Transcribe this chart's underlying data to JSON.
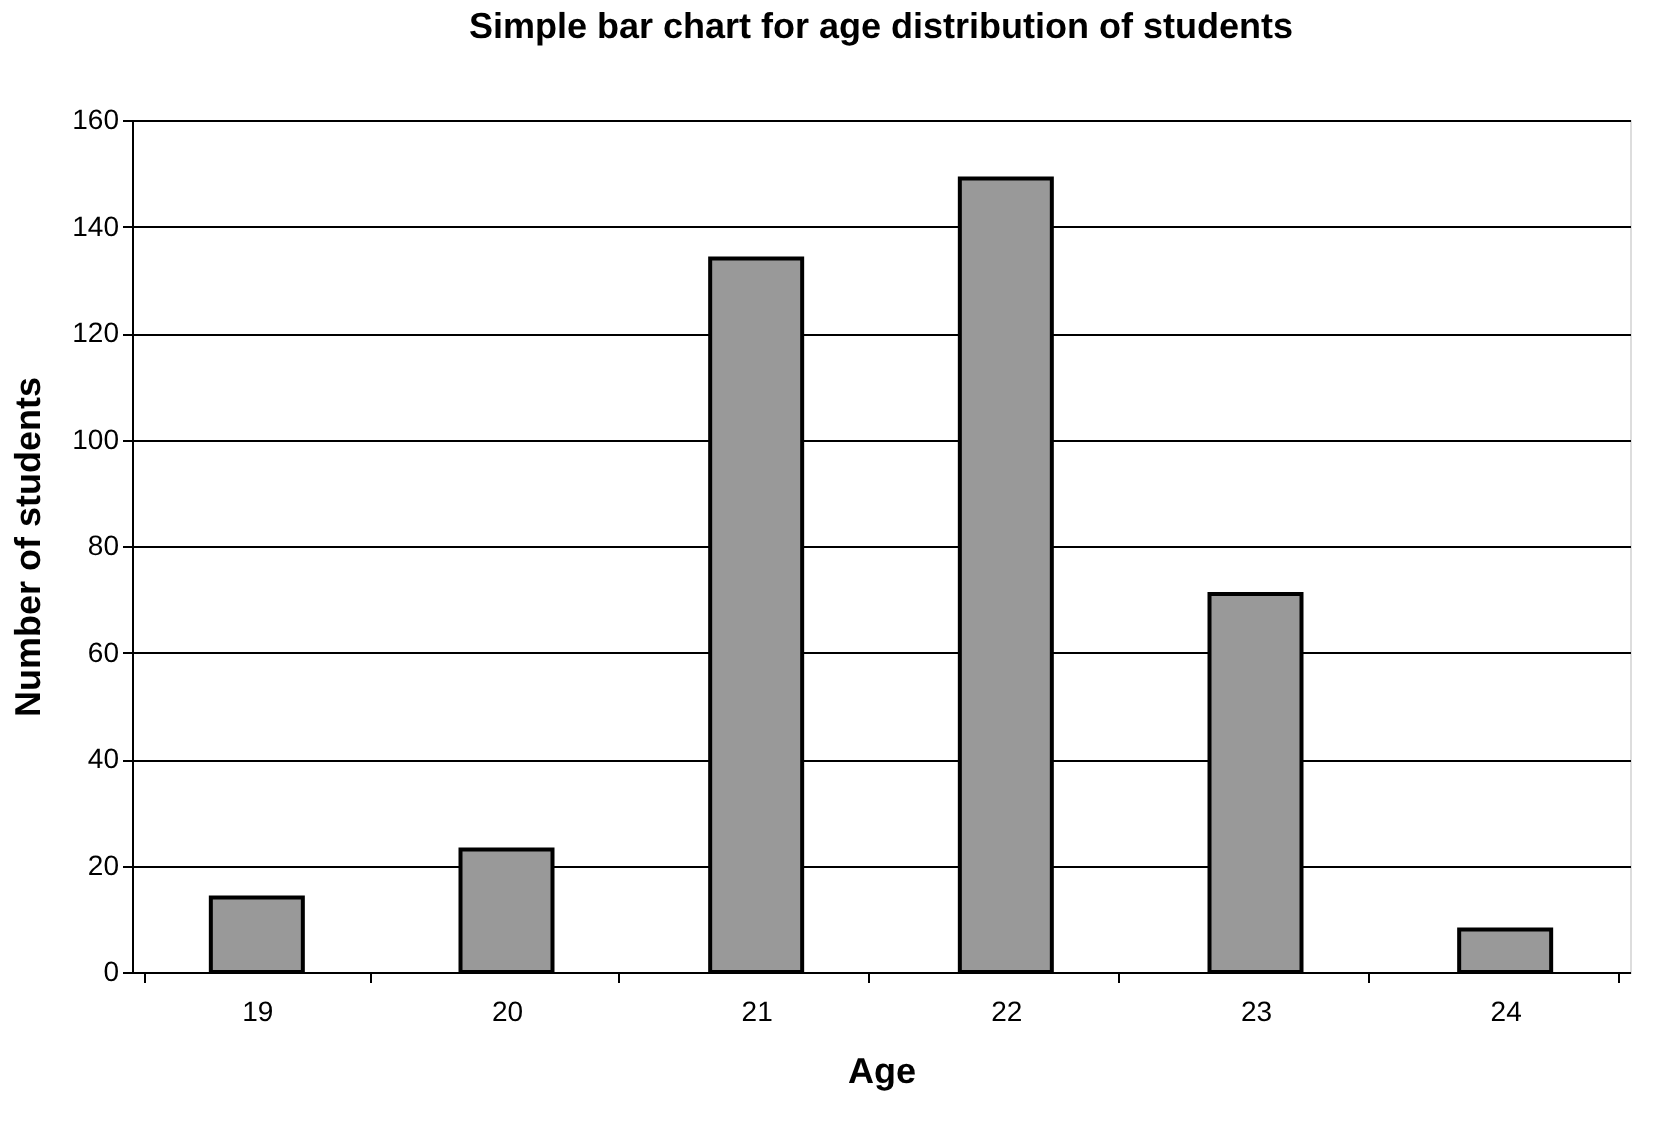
{
  "chart_data": {
    "type": "bar",
    "title": "Simple bar chart for age distribution of students",
    "xlabel": "Age",
    "ylabel": "Number of students",
    "categories": [
      "19",
      "20",
      "21",
      "22",
      "23",
      "24"
    ],
    "values": [
      14,
      23,
      134,
      149,
      71,
      8
    ],
    "color": "#999999",
    "ylim": [
      0,
      160
    ],
    "yticks": [
      0,
      20,
      40,
      60,
      80,
      100,
      120,
      140,
      160
    ],
    "grid": "y"
  }
}
